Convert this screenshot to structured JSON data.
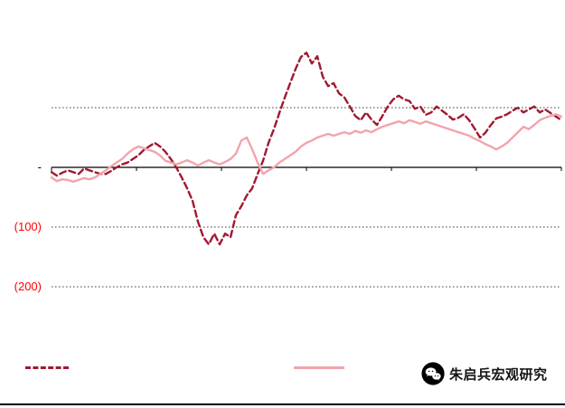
{
  "chart_data": {
    "type": "line",
    "title": "",
    "xlabel": "",
    "ylabel": "",
    "ylim": [
      -200,
      250
    ],
    "gridline_values": [
      100,
      -100,
      -200
    ],
    "x_tick_count": 7,
    "grid": "dotted-horizontal",
    "legend_position": "bottom",
    "y_axis_labels": [
      {
        "value": 0,
        "text": "-",
        "color": "#000000"
      },
      {
        "value": -100,
        "text": "(100)",
        "color": "#FF0000"
      },
      {
        "value": -200,
        "text": "(200)",
        "color": "#FF0000"
      }
    ],
    "legend": [
      {
        "label": "",
        "style": "dashed",
        "color": "#A01931"
      },
      {
        "label": "",
        "style": "solid",
        "color": "#F2A4AC"
      }
    ],
    "series": [
      {
        "name": "dark-red-dashed-series",
        "style": "dashed",
        "color": "#A01931",
        "values": [
          -8,
          -14,
          -9,
          -5,
          -8,
          -11,
          -2,
          -5,
          -8,
          -11,
          -11,
          -6,
          0,
          5,
          8,
          14,
          20,
          29,
          35,
          41,
          35,
          26,
          14,
          0,
          -17,
          -35,
          -56,
          -91,
          -117,
          -129,
          -111,
          -129,
          -111,
          -117,
          -80,
          -65,
          -47,
          -35,
          -11,
          11,
          41,
          64,
          91,
          117,
          141,
          165,
          185,
          192,
          174,
          186,
          152,
          136,
          141,
          124,
          117,
          102,
          86,
          79,
          92,
          80,
          71,
          86,
          102,
          114,
          120,
          114,
          111,
          98,
          102,
          88,
          92,
          102,
          95,
          88,
          80,
          83,
          89,
          79,
          65,
          50,
          58,
          71,
          82,
          85,
          89,
          95,
          100,
          92,
          97,
          102,
          92,
          97,
          91,
          85,
          79
        ]
      },
      {
        "name": "pink-solid-series",
        "style": "solid",
        "color": "#F2A4AC",
        "values": [
          -17,
          -23,
          -20,
          -21,
          -24,
          -21,
          -18,
          -20,
          -17,
          -11,
          -5,
          2,
          8,
          14,
          23,
          30,
          35,
          32,
          29,
          26,
          20,
          11,
          8,
          5,
          8,
          12,
          8,
          3,
          8,
          12,
          8,
          5,
          9,
          14,
          23,
          45,
          50,
          30,
          8,
          -11,
          -5,
          0,
          8,
          14,
          20,
          26,
          35,
          41,
          45,
          50,
          53,
          56,
          53,
          56,
          59,
          56,
          61,
          58,
          62,
          59,
          64,
          68,
          71,
          74,
          77,
          74,
          79,
          76,
          73,
          77,
          74,
          71,
          68,
          65,
          62,
          59,
          56,
          53,
          48,
          44,
          39,
          35,
          30,
          35,
          41,
          50,
          59,
          68,
          64,
          71,
          79,
          83,
          86,
          89,
          85
        ]
      }
    ]
  },
  "branding": {
    "name": "朱启兵宏观研究"
  }
}
